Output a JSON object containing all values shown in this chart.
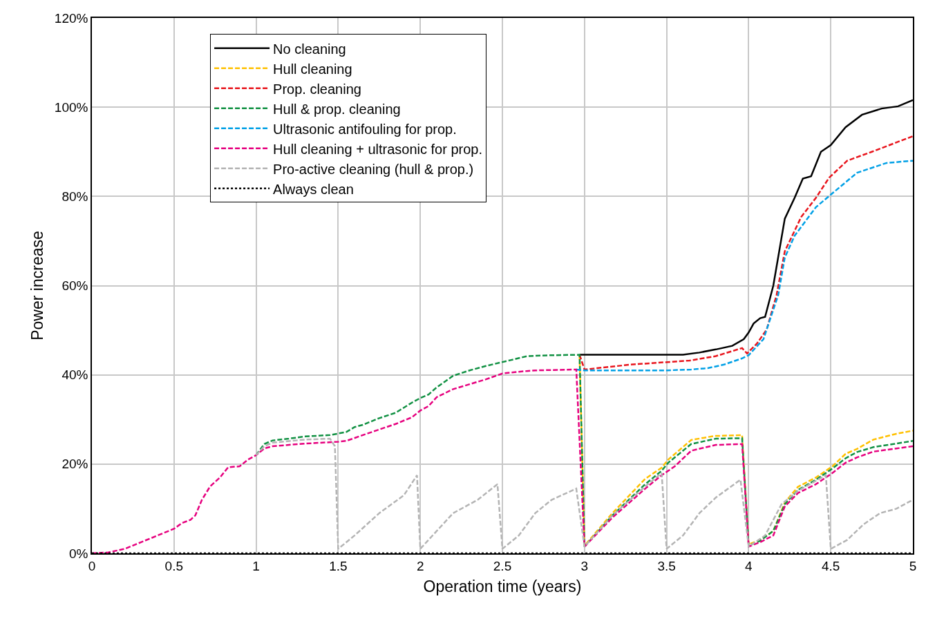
{
  "chart_data": {
    "type": "line",
    "xlabel": "Operation time (years)",
    "ylabel": "Power increase",
    "xlim": [
      0,
      5
    ],
    "xticks": [
      0,
      0.5,
      1,
      1.5,
      2,
      2.5,
      3,
      3.5,
      4,
      4.5,
      5
    ],
    "ylim": [
      0,
      120
    ],
    "yticks": [
      {
        "value": 0,
        "label": "0%"
      },
      {
        "value": 20,
        "label": "20%"
      },
      {
        "value": 40,
        "label": "40%"
      },
      {
        "value": 60,
        "label": "60%"
      },
      {
        "value": 80,
        "label": "80%"
      },
      {
        "value": 100,
        "label": "100%"
      },
      {
        "value": 120,
        "label": "120%"
      }
    ],
    "grid": true,
    "legend": "top left",
    "marker": "none",
    "series": [
      {
        "name": "No cleaning",
        "color": "#000000",
        "line_style": "solid",
        "x": [
          2.97,
          3.6,
          3.7,
          3.8,
          3.9,
          3.97,
          4.0,
          4.03,
          4.07,
          4.1,
          4.15,
          4.22,
          4.28,
          4.33,
          4.38,
          4.44,
          4.5,
          4.59,
          4.69,
          4.81,
          4.91,
          5.0
        ],
        "values": [
          44.5,
          44.5,
          45,
          45.7,
          46.5,
          48,
          49.5,
          51.5,
          52.7,
          53,
          60,
          75,
          79.7,
          84,
          84.5,
          90,
          91.5,
          95.5,
          98.3,
          99.7,
          100.2,
          101.6
        ]
      },
      {
        "name": "Hull cleaning",
        "color": "#ffc000",
        "line_style": "dashed",
        "x": [
          2.97,
          3.0,
          3.17,
          3.37,
          3.47,
          3.51,
          3.65,
          3.79,
          3.96,
          4.0,
          4.07,
          4.15,
          4.22,
          4.3,
          4.41,
          4.51,
          4.59,
          4.66,
          4.76,
          4.9,
          5.0
        ],
        "values": [
          44.5,
          1.7,
          9,
          16.7,
          19.2,
          21,
          25.4,
          26.3,
          26.5,
          2,
          3,
          5,
          11.4,
          14.9,
          17,
          19.5,
          22.3,
          23.4,
          25.5,
          26.8,
          27.5
        ]
      },
      {
        "name": "Prop. cleaning",
        "color": "#e8141c",
        "line_style": "dashed",
        "x": [
          2.97,
          3.0,
          3.28,
          3.64,
          3.8,
          3.96,
          3.99,
          4.05,
          4.11,
          4.17,
          4.22,
          4.32,
          4.41,
          4.49,
          4.6,
          4.75,
          5.0
        ],
        "values": [
          44.5,
          41.2,
          42.3,
          43.2,
          44.2,
          46,
          44.8,
          47,
          50.2,
          57.9,
          67.7,
          75.4,
          79.7,
          84.2,
          88,
          90,
          93.5
        ]
      },
      {
        "name": "Hull & prop. cleaning",
        "color": "#119143",
        "line_style": "dashed",
        "x": [
          1.0,
          1.05,
          1.1,
          1.2,
          1.3,
          1.45,
          1.55,
          1.6,
          1.65,
          1.75,
          1.85,
          1.95,
          2.0,
          2.05,
          2.1,
          2.2,
          2.3,
          2.4,
          2.55,
          2.65,
          2.8,
          2.97,
          3.0,
          3.17,
          3.37,
          3.47,
          3.51,
          3.65,
          3.8,
          3.96,
          4.0,
          4.07,
          4.15,
          4.22,
          4.3,
          4.41,
          4.51,
          4.59,
          4.66,
          4.76,
          4.9,
          5.0
        ],
        "values": [
          22,
          24.5,
          25.3,
          25.7,
          26.2,
          26.5,
          27.2,
          28.3,
          28.8,
          30.3,
          31.5,
          33.8,
          34.8,
          35.6,
          37.2,
          39.8,
          41,
          42,
          43.3,
          44.2,
          44.4,
          44.5,
          1.5,
          8.5,
          15.5,
          18.5,
          20.3,
          24.5,
          25.7,
          25.8,
          1.7,
          2.8,
          5,
          11,
          14.2,
          16.5,
          19,
          21.3,
          22.7,
          23.8,
          24.6,
          25.2
        ]
      },
      {
        "name": "Ultrasonic antifouling for prop.",
        "color": "#00a0e6",
        "line_style": "dashed",
        "x": [
          2.95,
          3.0,
          3.5,
          3.65,
          3.75,
          3.85,
          3.96,
          4.0,
          4.09,
          4.18,
          4.22,
          4.28,
          4.41,
          4.51,
          4.66,
          4.84,
          5.0
        ],
        "values": [
          41.2,
          41,
          41,
          41.2,
          41.5,
          42.3,
          43.7,
          44.4,
          48,
          57.9,
          66.3,
          71.2,
          77.6,
          80.7,
          85.3,
          87.5,
          88
        ]
      },
      {
        "name": "Hull cleaning + ultrasonic for prop.",
        "color": "#e6007e",
        "line_style": "dashed",
        "x": [
          0,
          0.1,
          0.2,
          0.3,
          0.4,
          0.5,
          0.55,
          0.6,
          0.63,
          0.67,
          0.72,
          0.78,
          0.83,
          0.9,
          0.95,
          1.0,
          1.05,
          1.1,
          1.3,
          1.5,
          1.55,
          1.65,
          1.85,
          1.95,
          2.0,
          2.05,
          2.1,
          2.2,
          2.4,
          2.5,
          2.6,
          2.7,
          2.95,
          3.0,
          3.17,
          3.37,
          3.47,
          3.55,
          3.65,
          3.8,
          3.96,
          4.0,
          4.07,
          4.15,
          4.22,
          4.3,
          4.41,
          4.51,
          4.59,
          4.66,
          4.76,
          4.9,
          5.0
        ],
        "values": [
          0,
          0.2,
          1,
          2.5,
          4,
          5.5,
          6.8,
          7.5,
          8.5,
          12,
          15,
          17,
          19.3,
          19.5,
          21,
          22,
          23.5,
          24,
          24.6,
          25,
          25.2,
          26.5,
          29,
          30.5,
          32,
          33,
          35,
          36.8,
          39,
          40.3,
          40.7,
          41,
          41.2,
          1.5,
          8,
          14.5,
          17.5,
          19.5,
          23,
          24.3,
          24.5,
          1.5,
          2.5,
          4,
          10.5,
          13.5,
          15.5,
          18,
          20.3,
          21.5,
          22.8,
          23.5,
          24
        ]
      },
      {
        "name": "Pro-active cleaning (hull & prop.)",
        "color": "#b4b4b4",
        "line_style": "dashed",
        "x": [
          1.0,
          1.05,
          1.1,
          1.3,
          1.45,
          1.48,
          1.5,
          1.6,
          1.75,
          1.9,
          1.98,
          2.0,
          2.1,
          2.2,
          2.35,
          2.47,
          2.5,
          2.6,
          2.7,
          2.8,
          2.95,
          3.0,
          3.17,
          3.37,
          3.47,
          3.5,
          3.6,
          3.7,
          3.8,
          3.95,
          4.0,
          4.1,
          4.2,
          4.3,
          4.47,
          4.5,
          4.6,
          4.7,
          4.8,
          4.9,
          5.0
        ],
        "values": [
          22,
          24,
          24.8,
          25.5,
          25.7,
          24,
          1,
          4,
          9,
          13,
          17.5,
          1,
          5,
          9,
          12,
          15.5,
          1,
          4,
          9,
          12,
          14.5,
          1.5,
          8.5,
          15,
          18,
          1,
          4,
          9,
          12.5,
          16.5,
          1.5,
          4,
          11,
          14,
          17.5,
          1,
          3,
          6.5,
          9,
          10,
          12
        ]
      },
      {
        "name": "Always clean",
        "color": "#000000",
        "line_style": "dotted",
        "x": [
          0,
          5
        ],
        "values": [
          0,
          0
        ]
      }
    ]
  }
}
